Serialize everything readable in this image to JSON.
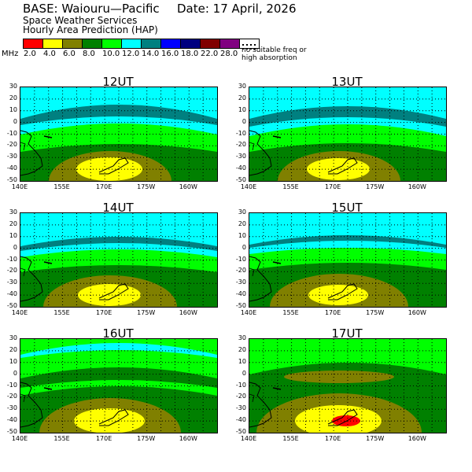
{
  "header": {
    "base": "BASE: Waiouru—Pacific",
    "date": "Date:  17 April, 2026",
    "line2": "Space Weather Services",
    "line3": "Hourly Area Prediction (HAP)"
  },
  "legend": {
    "unit": "MHz",
    "items": [
      {
        "label": "2.0",
        "color": "#ff0000"
      },
      {
        "label": "4.0",
        "color": "#ffff00"
      },
      {
        "label": "6.0",
        "color": "#808000"
      },
      {
        "label": "8.0",
        "color": "#008000"
      },
      {
        "label": "10.0",
        "color": "#00ff00"
      },
      {
        "label": "12.0",
        "color": "#00ffff"
      },
      {
        "label": "14.0",
        "color": "#008080"
      },
      {
        "label": "16.0",
        "color": "#0000ff"
      },
      {
        "label": "18.0",
        "color": "#000080"
      },
      {
        "label": "22.0",
        "color": "#800000"
      },
      {
        "label": "28.0",
        "color": "#800080"
      }
    ],
    "no_freq_line1": "no suitable freq or",
    "no_freq_line2": "high absorption"
  },
  "axes": {
    "y_ticks": [
      "30",
      "20",
      "10",
      "0",
      "-10",
      "-20",
      "-30",
      "-40",
      "-50"
    ],
    "x_ticks": [
      "140E",
      "155E",
      "170E",
      "175W",
      "160W"
    ]
  },
  "panels": [
    {
      "title": "12UT"
    },
    {
      "title": "13UT"
    },
    {
      "title": "14UT"
    },
    {
      "title": "15UT"
    },
    {
      "title": "16UT"
    },
    {
      "title": "17UT"
    }
  ]
}
